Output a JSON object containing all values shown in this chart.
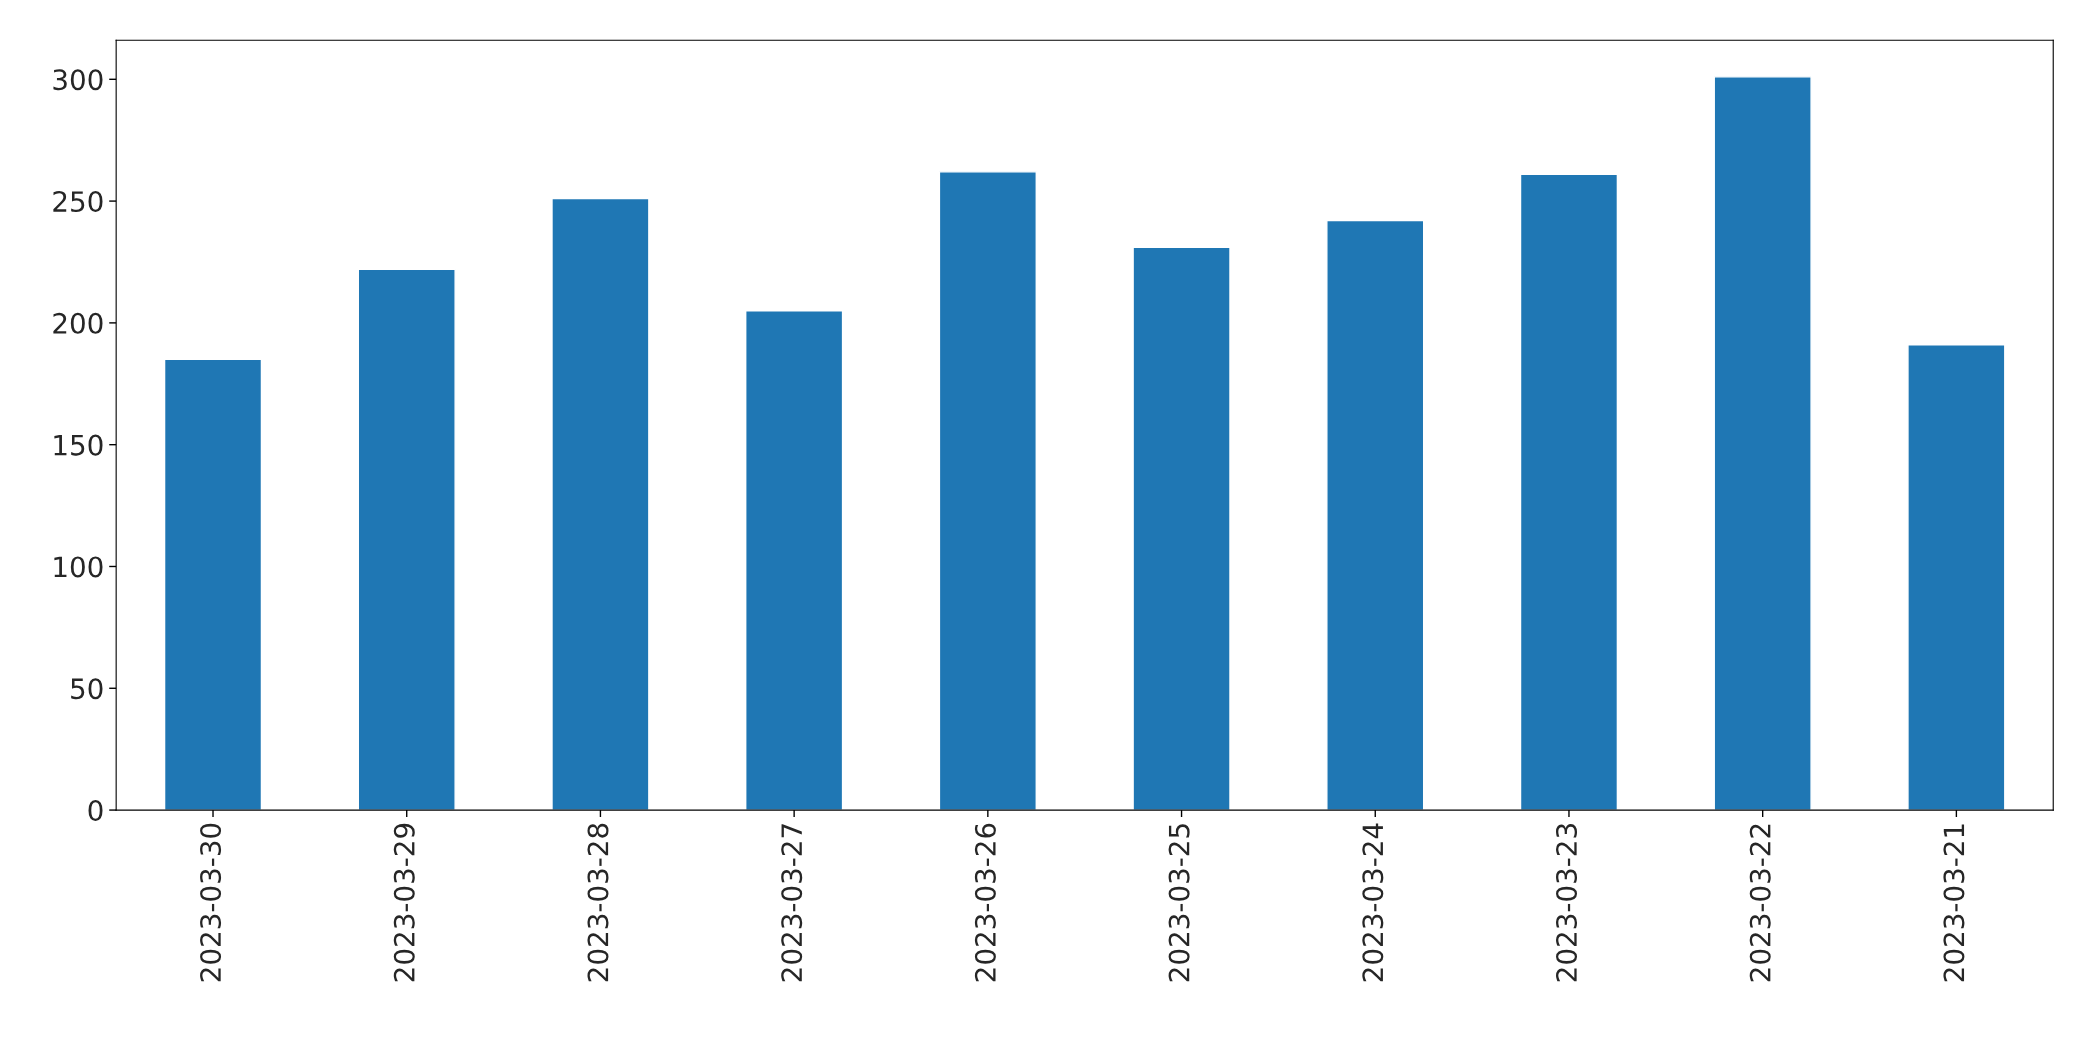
{
  "chart_data": {
    "type": "bar",
    "categories": [
      "2023-03-30",
      "2023-03-29",
      "2023-03-28",
      "2023-03-27",
      "2023-03-26",
      "2023-03-25",
      "2023-03-24",
      "2023-03-23",
      "2023-03-22",
      "2023-03-21"
    ],
    "values": [
      185,
      222,
      251,
      205,
      262,
      231,
      242,
      261,
      301,
      191
    ],
    "color": "#1f77b4",
    "ylim": [
      0,
      316
    ],
    "yticks": [
      0,
      50,
      100,
      150,
      200,
      250,
      300
    ],
    "grid": false,
    "legend": false
  }
}
